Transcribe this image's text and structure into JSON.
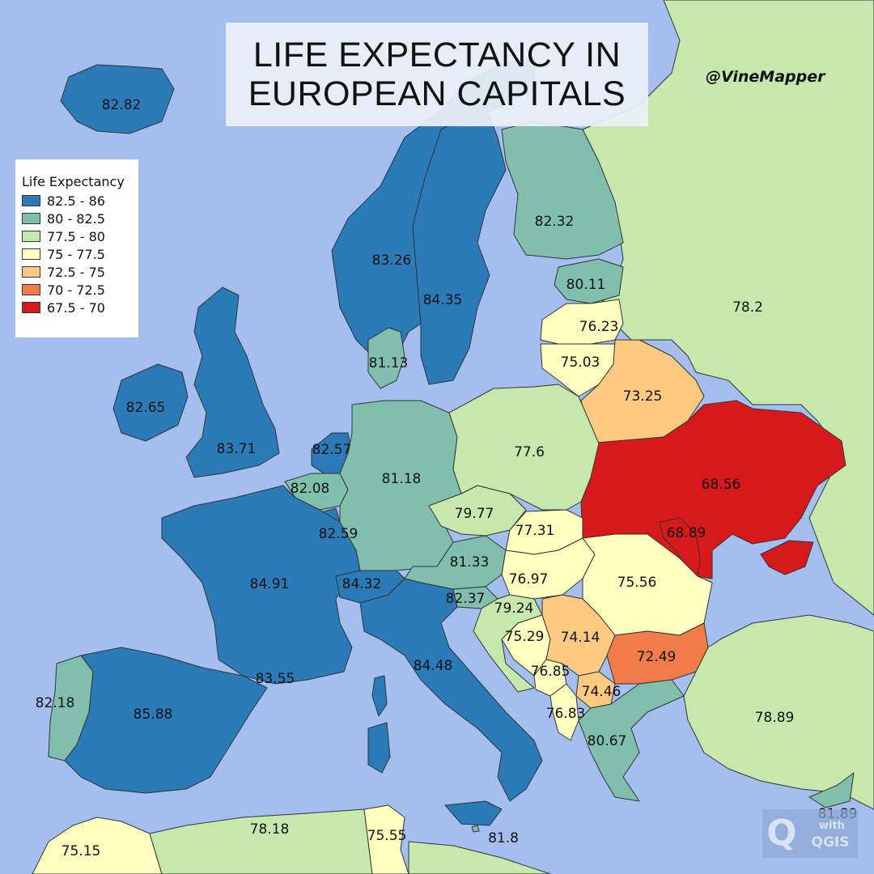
{
  "title": {
    "line1": "LIFE EXPECTANCY IN",
    "line2": "EUROPEAN CAPITALS"
  },
  "credit": "@VineMapper",
  "legend": {
    "title": "Life Expectancy",
    "items": [
      {
        "label": "82.5 - 86",
        "color": "#2b7bb9"
      },
      {
        "label": "80 - 82.5",
        "color": "#80bfab"
      },
      {
        "label": "77.5 - 80",
        "color": "#c7e8ad"
      },
      {
        "label": "75 - 77.5",
        "color": "#ffffbf"
      },
      {
        "label": "72.5 - 75",
        "color": "#fec980"
      },
      {
        "label": "70 - 72.5",
        "color": "#f17c4a"
      },
      {
        "label": "67.5 - 70",
        "color": "#d7191c"
      }
    ]
  },
  "colors": {
    "sea": "#a4bfef",
    "border": "#333333"
  },
  "regions": {
    "iceland": "82.82",
    "norway": "83.26",
    "sweden": "84.35",
    "finland": "82.32",
    "estonia": "80.11",
    "latvia": "76.23",
    "lithuania": "75.03",
    "belarus": "73.25",
    "russia": "78.2",
    "denmark": "81.13",
    "ireland": "82.65",
    "uk": "83.71",
    "netherlands": "82.57",
    "belgium": "82.08",
    "luxembourg": "82.59",
    "germany": "81.18",
    "poland": "77.6",
    "ukraine": "68.56",
    "moldova": "68.89",
    "czechia": "79.77",
    "slovakia": "77.31",
    "austria": "81.33",
    "hungary": "76.97",
    "romania": "75.56",
    "france": "84.91",
    "switzerland": "84.32",
    "slovenia": "82.37",
    "croatia": "79.24",
    "bosnia": "75.29",
    "serbia": "74.14",
    "montenegro": "76.85",
    "macedonia": "74.46",
    "albania": "76.83",
    "bulgaria": "72.49",
    "greece": "80.67",
    "italy": "84.48",
    "monaco": "83.55",
    "portugal": "82.18",
    "spain": "85.88",
    "turkey": "78.89",
    "cyprus": "81.89",
    "morocco": "75.15",
    "algeria": "78.18",
    "tunisia": "75.55",
    "malta": "81.8"
  },
  "badge": {
    "letter": "Q",
    "with": "with",
    "brand": "QGIS"
  }
}
